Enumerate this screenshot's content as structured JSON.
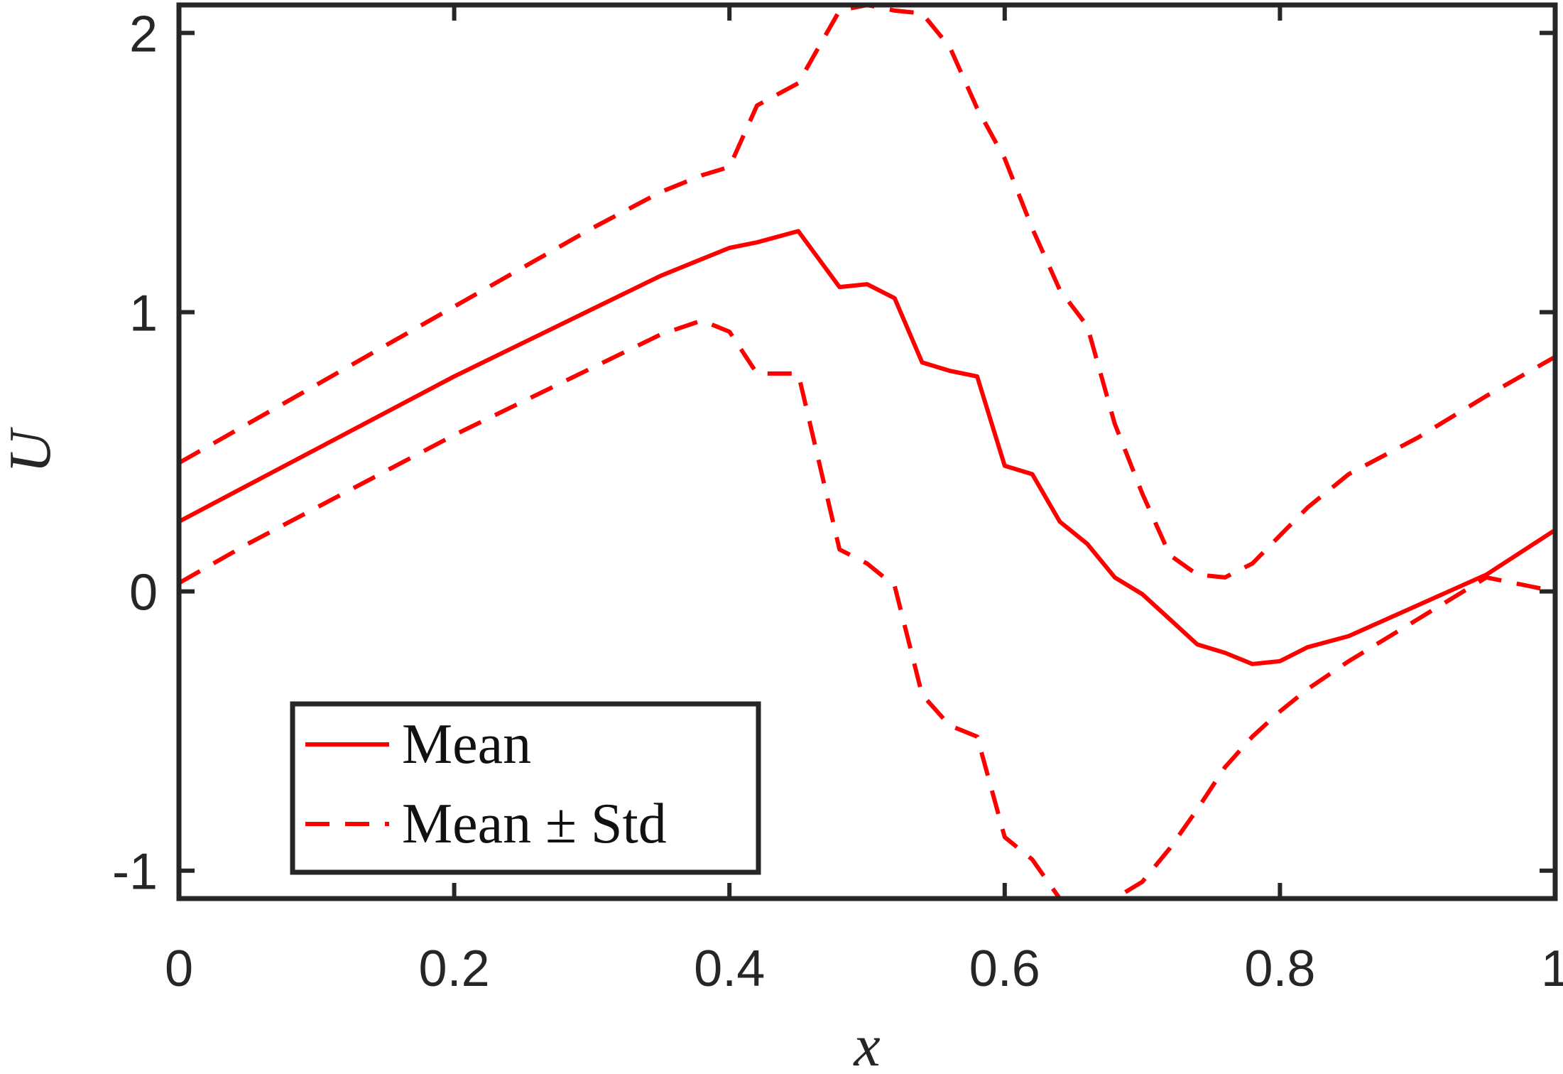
{
  "colors": {
    "series": "#ff0000",
    "axes": "#262626",
    "background": "#ffffff"
  },
  "chart_data": {
    "type": "line",
    "title": "",
    "xlabel": "x",
    "ylabel": "U",
    "xlim": [
      0,
      1
    ],
    "ylim": [
      -1.1,
      2.1
    ],
    "grid": false,
    "legend_position": "bottom-left",
    "xticks": [
      0,
      0.2,
      0.4,
      0.6,
      0.8,
      1
    ],
    "xtick_labels": [
      "0",
      "0.2",
      "0.4",
      "0.6",
      "0.8",
      "1"
    ],
    "yticks": [
      -1,
      0,
      1,
      2
    ],
    "ytick_labels": [
      "-1",
      "0",
      "1",
      "2"
    ],
    "x": [
      0,
      0.05,
      0.1,
      0.15,
      0.2,
      0.25,
      0.3,
      0.35,
      0.38,
      0.4,
      0.42,
      0.45,
      0.48,
      0.5,
      0.52,
      0.54,
      0.56,
      0.58,
      0.6,
      0.62,
      0.64,
      0.66,
      0.68,
      0.7,
      0.72,
      0.74,
      0.76,
      0.78,
      0.8,
      0.82,
      0.85,
      0.9,
      0.95,
      1.0
    ],
    "series": [
      {
        "name": "Mean",
        "style": "solid",
        "values": [
          0.25,
          0.38,
          0.51,
          0.64,
          0.77,
          0.89,
          1.01,
          1.13,
          1.19,
          1.23,
          1.25,
          1.29,
          1.09,
          1.1,
          1.05,
          0.82,
          0.79,
          0.77,
          0.45,
          0.42,
          0.25,
          0.17,
          0.05,
          -0.01,
          -0.1,
          -0.19,
          -0.22,
          -0.26,
          -0.25,
          -0.2,
          -0.16,
          -0.05,
          0.06,
          0.22
        ]
      },
      {
        "name": "Mean + Std",
        "style": "dashed",
        "values": [
          0.46,
          0.6,
          0.74,
          0.88,
          1.02,
          1.16,
          1.3,
          1.43,
          1.49,
          1.52,
          1.74,
          1.82,
          2.08,
          2.1,
          2.08,
          2.07,
          1.95,
          1.73,
          1.55,
          1.3,
          1.08,
          0.95,
          0.6,
          0.35,
          0.13,
          0.06,
          0.05,
          0.1,
          0.2,
          0.3,
          0.42,
          0.55,
          0.7,
          0.84
        ]
      },
      {
        "name": "Mean - Std",
        "style": "dashed",
        "values": [
          0.03,
          0.17,
          0.3,
          0.43,
          0.56,
          0.68,
          0.8,
          0.92,
          0.97,
          0.93,
          0.78,
          0.78,
          0.15,
          0.1,
          0.02,
          -0.37,
          -0.48,
          -0.52,
          -0.88,
          -0.96,
          -1.1,
          -1.1,
          -1.1,
          -1.04,
          -0.92,
          -0.78,
          -0.63,
          -0.52,
          -0.43,
          -0.35,
          -0.25,
          -0.1,
          0.05,
          0.0
        ]
      }
    ],
    "legend": [
      {
        "label": "Mean",
        "style": "solid"
      },
      {
        "label": "Mean ± Std",
        "style": "dashed"
      }
    ]
  }
}
